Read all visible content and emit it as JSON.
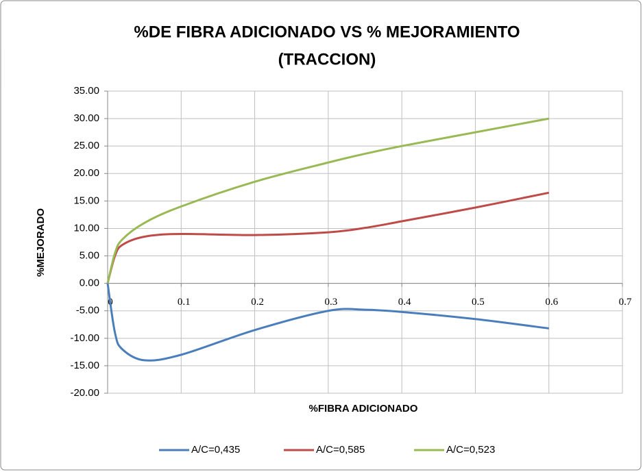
{
  "chart_data": {
    "type": "line",
    "title": [
      "%DE FIBRA ADICIONADO VS % MEJORAMIENTO",
      "(TRACCION)"
    ],
    "x_label": "%FIBRA ADICIONADO",
    "y_label": "%MEJORADO",
    "x": [
      0,
      0.01,
      0.02,
      0.05,
      0.1,
      0.2,
      0.3,
      0.35,
      0.4,
      0.5,
      0.6
    ],
    "series": [
      {
        "name": "A/C=0,435",
        "color": "#4a7ebb",
        "values": [
          0,
          -9,
          -12,
          -14,
          -13,
          -8.5,
          -5,
          -4.8,
          -5.2,
          -6.5,
          -8.2
        ]
      },
      {
        "name": "A/C=0,585",
        "color": "#be4b48",
        "values": [
          0,
          5,
          7,
          8.5,
          9,
          8.8,
          9.3,
          10.1,
          11.3,
          13.8,
          16.5
        ]
      },
      {
        "name": "A/C=0,523",
        "color": "#98b954",
        "values": [
          0,
          5.5,
          8,
          11,
          14,
          18.5,
          22,
          23.6,
          25,
          27.5,
          30
        ]
      }
    ],
    "xlim": [
      0,
      0.7
    ],
    "xticks": [
      0,
      0.1,
      0.2,
      0.3,
      0.4,
      0.5,
      0.6,
      0.7
    ],
    "ylim": [
      -20,
      35
    ],
    "yticks": [
      {
        "value": -20,
        "label": "-20.00"
      },
      {
        "value": -15,
        "label": "-15.00"
      },
      {
        "value": -10,
        "label": "-10.00"
      },
      {
        "value": -5,
        "label": "-5.00"
      },
      {
        "value": 0,
        "label": "0.00"
      },
      {
        "value": 5,
        "label": "5.00"
      },
      {
        "value": 10,
        "label": "10.00"
      },
      {
        "value": 15,
        "label": "15.00"
      },
      {
        "value": 20,
        "label": "20.00"
      },
      {
        "value": 25,
        "label": "25.00"
      },
      {
        "value": 30,
        "label": "30.00"
      },
      {
        "value": 35,
        "label": "35.00"
      }
    ],
    "grid": true,
    "legend": "bottom"
  }
}
